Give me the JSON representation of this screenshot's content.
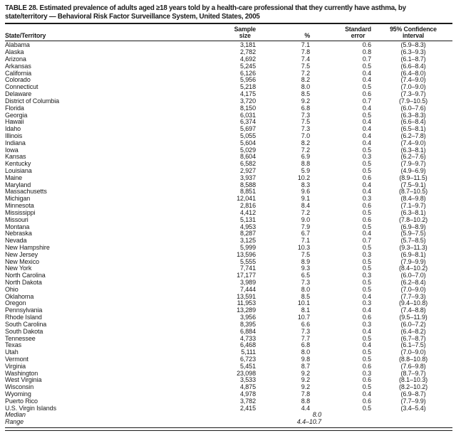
{
  "title": {
    "line1": "TABLE 28. Estimated prevalence of adults aged ≥18 years told by a health-care professional that they currently have asthma, by",
    "line2": "state/territory — Behavioral Risk Factor Surveillance System, United States, 2005"
  },
  "table": {
    "columns": [
      {
        "id": "state",
        "label": "State/Territory"
      },
      {
        "id": "sample",
        "label": "Sample\nsize"
      },
      {
        "id": "pct",
        "label": "%"
      },
      {
        "id": "se",
        "label": "Standard\nerror"
      },
      {
        "id": "ci",
        "label": "95% Confidence\ninterval"
      }
    ],
    "rows": [
      [
        "Alabama",
        "3,181",
        "7.1",
        "0.6",
        "(5.9–8.3)"
      ],
      [
        "Alaska",
        "2,782",
        "7.8",
        "0.8",
        "(6.3–9.3)"
      ],
      [
        "Arizona",
        "4,692",
        "7.4",
        "0.7",
        "(6.1–8.7)"
      ],
      [
        "Arkansas",
        "5,245",
        "7.5",
        "0.5",
        "(6.6–8.4)"
      ],
      [
        "California",
        "6,126",
        "7.2",
        "0.4",
        "(6.4–8.0)"
      ],
      [
        "Colorado",
        "5,956",
        "8.2",
        "0.4",
        "(7.4–9.0)"
      ],
      [
        "Connecticut",
        "5,218",
        "8.0",
        "0.5",
        "(7.0–9.0)"
      ],
      [
        "Delaware",
        "4,175",
        "8.5",
        "0.6",
        "(7.3–9.7)"
      ],
      [
        "District of Columbia",
        "3,720",
        "9.2",
        "0.7",
        "(7.9–10.5)"
      ],
      [
        "Florida",
        "8,150",
        "6.8",
        "0.4",
        "(6.0–7.6)"
      ],
      [
        "Georgia",
        "6,031",
        "7.3",
        "0.5",
        "(6.3–8.3)"
      ],
      [
        "Hawaii",
        "6,374",
        "7.5",
        "0.4",
        "(6.6–8.4)"
      ],
      [
        "Idaho",
        "5,697",
        "7.3",
        "0.4",
        "(6.5–8.1)"
      ],
      [
        "Illinois",
        "5,055",
        "7.0",
        "0.4",
        "(6.2–7.8)"
      ],
      [
        "Indiana",
        "5,604",
        "8.2",
        "0.4",
        "(7.4–9.0)"
      ],
      [
        "Iowa",
        "5,029",
        "7.2",
        "0.5",
        "(6.3–8.1)"
      ],
      [
        "Kansas",
        "8,604",
        "6.9",
        "0.3",
        "(6.2–7.6)"
      ],
      [
        "Kentucky",
        "6,582",
        "8.8",
        "0.5",
        "(7.9–9.7)"
      ],
      [
        "Louisiana",
        "2,927",
        "5.9",
        "0.5",
        "(4.9–6.9)"
      ],
      [
        "Maine",
        "3,937",
        "10.2",
        "0.6",
        "(8.9–11.5)"
      ],
      [
        "Maryland",
        "8,588",
        "8.3",
        "0.4",
        "(7.5–9.1)"
      ],
      [
        "Massachusetts",
        "8,851",
        "9.6",
        "0.4",
        "(8.7–10.5)"
      ],
      [
        "Michigan",
        "12,041",
        "9.1",
        "0.3",
        "(8.4–9.8)"
      ],
      [
        "Minnesota",
        "2,816",
        "8.4",
        "0.6",
        "(7.1–9.7)"
      ],
      [
        "Mississippi",
        "4,412",
        "7.2",
        "0.5",
        "(6.3–8.1)"
      ],
      [
        "Missouri",
        "5,131",
        "9.0",
        "0.6",
        "(7.8–10.2)"
      ],
      [
        "Montana",
        "4,953",
        "7.9",
        "0.5",
        "(6.9–8.9)"
      ],
      [
        "Nebraska",
        "8,287",
        "6.7",
        "0.4",
        "(5.9–7.5)"
      ],
      [
        "Nevada",
        "3,125",
        "7.1",
        "0.7",
        "(5.7–8.5)"
      ],
      [
        "New Hampshire",
        "5,999",
        "10.3",
        "0.5",
        "(9.3–11.3)"
      ],
      [
        "New Jersey",
        "13,596",
        "7.5",
        "0.3",
        "(6.9–8.1)"
      ],
      [
        "New Mexico",
        "5,555",
        "8.9",
        "0.5",
        "(7.9–9.9)"
      ],
      [
        "New York",
        "7,741",
        "9.3",
        "0.5",
        "(8.4–10.2)"
      ],
      [
        "North Carolina",
        "17,177",
        "6.5",
        "0.3",
        "(6.0–7.0)"
      ],
      [
        "North Dakota",
        "3,989",
        "7.3",
        "0.5",
        "(6.2–8.4)"
      ],
      [
        "Ohio",
        "7,444",
        "8.0",
        "0.5",
        "(7.0–9.0)"
      ],
      [
        "Oklahoma",
        "13,591",
        "8.5",
        "0.4",
        "(7.7–9.3)"
      ],
      [
        "Oregon",
        "11,953",
        "10.1",
        "0.3",
        "(9.4–10.8)"
      ],
      [
        "Pennsylvania",
        "13,289",
        "8.1",
        "0.4",
        "(7.4–8.8)"
      ],
      [
        "Rhode Island",
        "3,956",
        "10.7",
        "0.6",
        "(9.5–11.9)"
      ],
      [
        "South Carolina",
        "8,395",
        "6.6",
        "0.3",
        "(6.0–7.2)"
      ],
      [
        "South Dakota",
        "6,884",
        "7.3",
        "0.4",
        "(6.4–8.2)"
      ],
      [
        "Tennessee",
        "4,733",
        "7.7",
        "0.5",
        "(6.7–8.7)"
      ],
      [
        "Texas",
        "6,468",
        "6.8",
        "0.4",
        "(6.1–7.5)"
      ],
      [
        "Utah",
        "5,111",
        "8.0",
        "0.5",
        "(7.0–9.0)"
      ],
      [
        "Vermont",
        "6,723",
        "9.8",
        "0.5",
        "(8.8–10.8)"
      ],
      [
        "Virginia",
        "5,451",
        "8.7",
        "0.6",
        "(7.6–9.8)"
      ],
      [
        "Washington",
        "23,098",
        "9.2",
        "0.3",
        "(8.7–9.7)"
      ],
      [
        "West Virginia",
        "3,533",
        "9.2",
        "0.6",
        "(8.1–10.3)"
      ],
      [
        "Wisconsin",
        "4,875",
        "9.2",
        "0.5",
        "(8.2–10.2)"
      ],
      [
        "Wyoming",
        "4,978",
        "7.8",
        "0.4",
        "(6.9–8.7)"
      ],
      [
        "Puerto Rico",
        "3,782",
        "8.8",
        "0.6",
        "(7.7–9.9)"
      ],
      [
        "U.S. Virgin Islands",
        "2,415",
        "4.4",
        "0.5",
        "(3.4–5.4)"
      ]
    ],
    "summary_rows": [
      {
        "label": "Median",
        "value": "8.0"
      },
      {
        "label": "Range",
        "value": "4.4–10.7"
      }
    ]
  }
}
